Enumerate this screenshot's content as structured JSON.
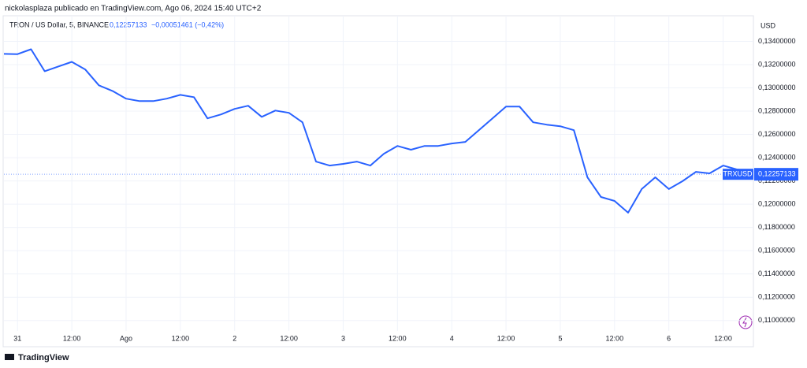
{
  "header": {
    "credit": "nickolasplaza publicado en TradingView.com, Ago 06, 2024 15:40 UTC+2",
    "symbol": "TRON / US Dollar, 5, BINANCE",
    "change": "−0,00051461 (−0,42%)",
    "footer": "TradingView"
  },
  "chart_data": {
    "type": "line",
    "y_unit": "USD",
    "series_label": "TRXUSD",
    "last_price": {
      "value": 0.12257133,
      "label": "0,12257133"
    },
    "color": "#2962ff",
    "grid": true,
    "categories": [
      null,
      "31",
      null,
      null,
      null,
      "12:00",
      null,
      null,
      null,
      "Ago",
      null,
      null,
      null,
      "12:00",
      null,
      null,
      null,
      "2",
      null,
      null,
      null,
      "12:00",
      null,
      null,
      null,
      "3",
      null,
      null,
      null,
      "12:00",
      null,
      null,
      null,
      "4",
      null,
      null,
      null,
      "12:00",
      null,
      null,
      null,
      "5",
      null,
      null,
      null,
      "12:00",
      null,
      null,
      null,
      "6",
      null,
      null,
      null,
      "12:00",
      null,
      null
    ],
    "values": [
      0.13292,
      0.1329,
      0.13332,
      0.13143,
      0.13184,
      0.13224,
      0.13157,
      0.13022,
      0.12974,
      0.12907,
      0.12886,
      0.12886,
      0.12907,
      0.1294,
      0.1292,
      0.12738,
      0.12772,
      0.12819,
      0.12846,
      0.12751,
      0.12805,
      0.12785,
      0.12704,
      0.12366,
      0.12332,
      0.12346,
      0.12366,
      0.12332,
      0.12434,
      0.12501,
      0.12468,
      0.12501,
      0.12501,
      0.12522,
      0.12535,
      0.12636,
      0.12738,
      0.12839,
      0.12839,
      0.12704,
      0.12684,
      0.1267,
      0.12636,
      0.12231,
      0.12062,
      0.12028,
      0.11927,
      0.1213,
      0.12231,
      0.1213,
      0.12197,
      0.12278,
      0.12265,
      0.12332,
      0.12299,
      0.12285
    ],
    "ylim": [
      0.1091,
      0.1362
    ],
    "yticks": [
      {
        "value": 0.134,
        "label": "0,13400000"
      },
      {
        "value": 0.132,
        "label": "0,13200000"
      },
      {
        "value": 0.13,
        "label": "0,13000000"
      },
      {
        "value": 0.128,
        "label": "0,12800000"
      },
      {
        "value": 0.126,
        "label": "0,12600000"
      },
      {
        "value": 0.124,
        "label": "0,12400000"
      },
      {
        "value": 0.122,
        "label": "0,12200000"
      },
      {
        "value": 0.12,
        "label": "0,12000000"
      },
      {
        "value": 0.118,
        "label": "0,11800000"
      },
      {
        "value": 0.116,
        "label": "0,11600000"
      },
      {
        "value": 0.114,
        "label": "0,11400000"
      },
      {
        "value": 0.112,
        "label": "0,11200000"
      },
      {
        "value": 0.11,
        "label": "0,11000000"
      }
    ]
  }
}
